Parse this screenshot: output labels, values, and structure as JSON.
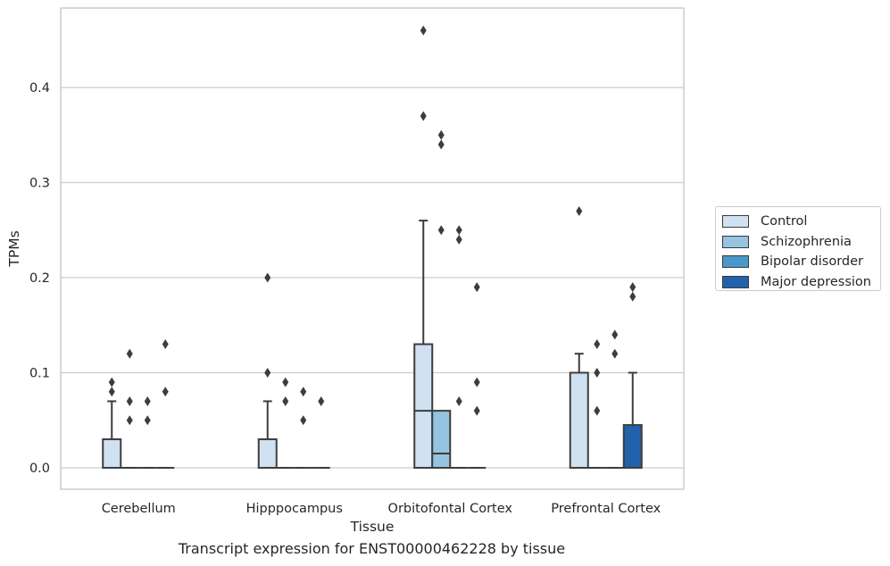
{
  "caption": "Transcript expression for ENST00000462228 by tissue",
  "chart_data": {
    "type": "boxplot",
    "xlabel": "Tissue",
    "ylabel": "TPMs",
    "ylim": [
      -0.023,
      0.483
    ],
    "yticks": [
      0.0,
      0.1,
      0.2,
      0.3,
      0.4
    ],
    "ytick_labels": [
      "0.0",
      "0.1",
      "0.2",
      "0.3",
      "0.4"
    ],
    "grid": true,
    "legend_position": "outside-right",
    "categories": [
      "Cerebellum",
      "Hipppocampus",
      "Orbitofontal Cortex",
      "Prefrontal Cortex"
    ],
    "series": [
      {
        "name": "Control",
        "color": "#d0e1f2",
        "boxes": [
          {
            "q1": 0.0,
            "median": 0.0,
            "q3": 0.03,
            "whisker_low": 0.0,
            "whisker_high": 0.07,
            "outliers": [
              0.08,
              0.09
            ]
          },
          {
            "q1": 0.0,
            "median": 0.0,
            "q3": 0.03,
            "whisker_low": 0.0,
            "whisker_high": 0.07,
            "outliers": [
              0.1,
              0.2
            ]
          },
          {
            "q1": 0.0,
            "median": 0.06,
            "q3": 0.13,
            "whisker_low": 0.0,
            "whisker_high": 0.26,
            "outliers": [
              0.37,
              0.46
            ]
          },
          {
            "q1": 0.0,
            "median": 0.0,
            "q3": 0.1,
            "whisker_low": 0.0,
            "whisker_high": 0.12,
            "outliers": [
              0.27
            ]
          }
        ]
      },
      {
        "name": "Schizophrenia",
        "color": "#94c4df",
        "boxes": [
          {
            "q1": 0.0,
            "median": 0.0,
            "q3": 0.0,
            "whisker_low": 0.0,
            "whisker_high": 0.0,
            "outliers": [
              0.05,
              0.07,
              0.12
            ]
          },
          {
            "q1": 0.0,
            "median": 0.0,
            "q3": 0.0,
            "whisker_low": 0.0,
            "whisker_high": 0.0,
            "outliers": [
              0.07,
              0.09
            ]
          },
          {
            "q1": 0.0,
            "median": 0.015,
            "q3": 0.06,
            "whisker_low": 0.0,
            "whisker_high": 0.06,
            "outliers": [
              0.25,
              0.34,
              0.35
            ]
          },
          {
            "q1": 0.0,
            "median": 0.0,
            "q3": 0.0,
            "whisker_low": 0.0,
            "whisker_high": 0.0,
            "outliers": [
              0.06,
              0.1,
              0.13
            ]
          }
        ]
      },
      {
        "name": "Bipolar disorder",
        "color": "#4a98c9",
        "boxes": [
          {
            "q1": 0.0,
            "median": 0.0,
            "q3": 0.0,
            "whisker_low": 0.0,
            "whisker_high": 0.0,
            "outliers": [
              0.05,
              0.07
            ]
          },
          {
            "q1": 0.0,
            "median": 0.0,
            "q3": 0.0,
            "whisker_low": 0.0,
            "whisker_high": 0.0,
            "outliers": [
              0.05,
              0.08
            ]
          },
          {
            "q1": 0.0,
            "median": 0.0,
            "q3": 0.0,
            "whisker_low": 0.0,
            "whisker_high": 0.0,
            "outliers": [
              0.07,
              0.24,
              0.25
            ]
          },
          {
            "q1": 0.0,
            "median": 0.0,
            "q3": 0.0,
            "whisker_low": 0.0,
            "whisker_high": 0.0,
            "outliers": [
              0.12,
              0.14
            ]
          }
        ]
      },
      {
        "name": "Major depression",
        "color": "#2163aa",
        "boxes": [
          {
            "q1": 0.0,
            "median": 0.0,
            "q3": 0.0,
            "whisker_low": 0.0,
            "whisker_high": 0.0,
            "outliers": [
              0.08,
              0.13
            ]
          },
          {
            "q1": 0.0,
            "median": 0.0,
            "q3": 0.0,
            "whisker_low": 0.0,
            "whisker_high": 0.0,
            "outliers": [
              0.07
            ]
          },
          {
            "q1": 0.0,
            "median": 0.0,
            "q3": 0.0,
            "whisker_low": 0.0,
            "whisker_high": 0.0,
            "outliers": [
              0.06,
              0.09,
              0.19
            ]
          },
          {
            "q1": 0.0,
            "median": 0.0,
            "q3": 0.045,
            "whisker_low": 0.0,
            "whisker_high": 0.1,
            "outliers": [
              0.18,
              0.19
            ]
          }
        ]
      }
    ]
  }
}
